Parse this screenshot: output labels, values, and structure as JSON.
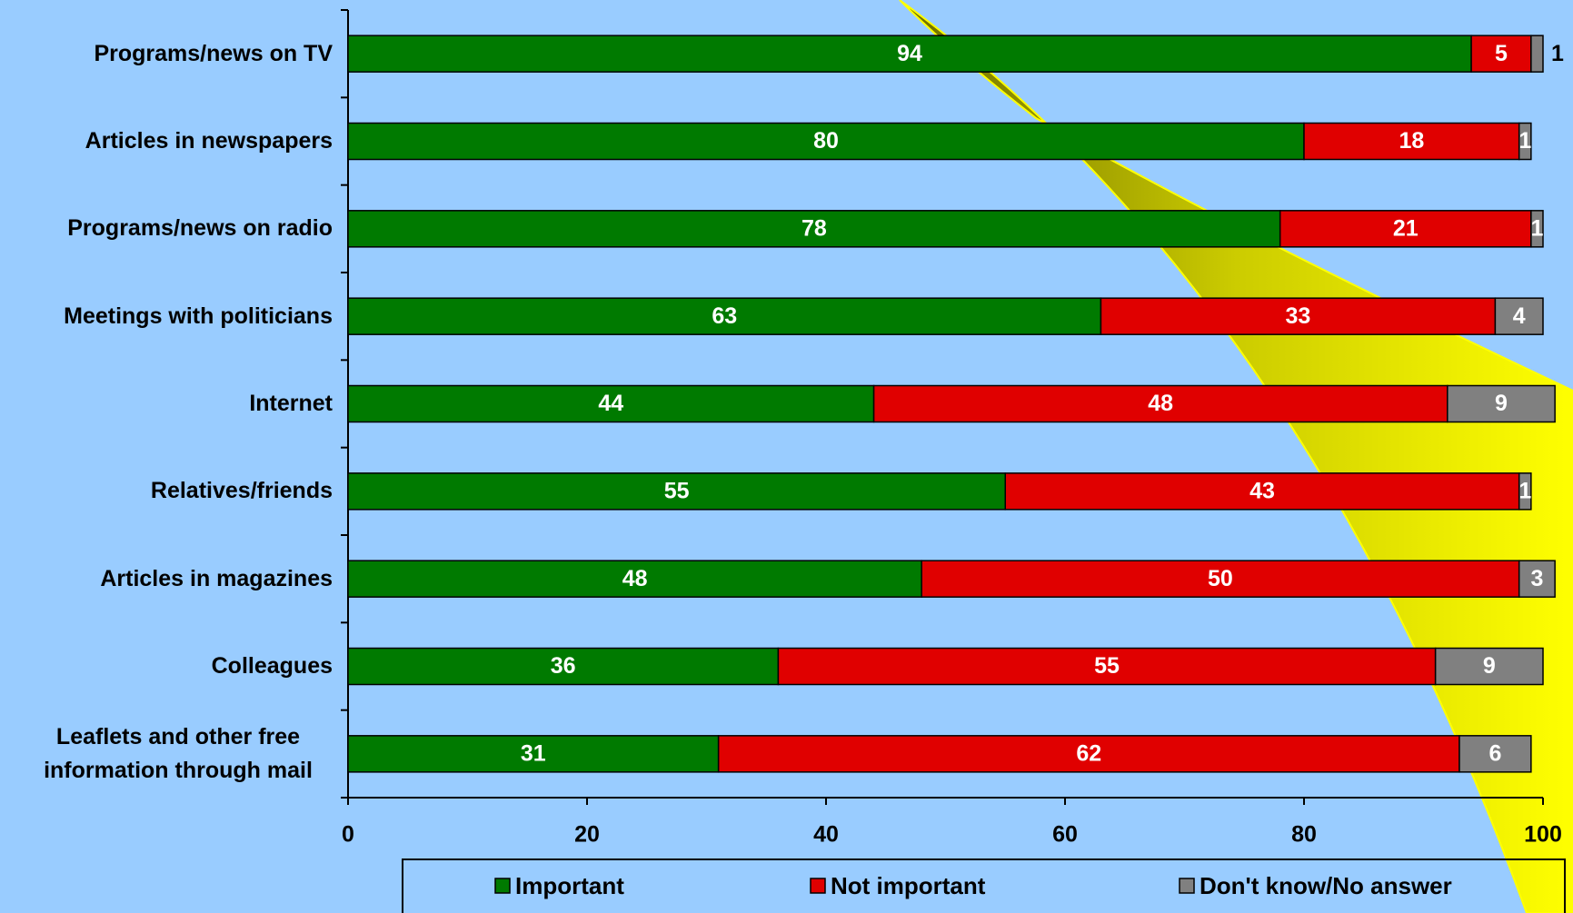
{
  "chart_data": {
    "type": "stacked-bar-horizontal",
    "categories": [
      "Programs/news on TV",
      "Articles in newspapers",
      "Programs/news on radio",
      "Meetings with politicians",
      "Internet",
      "Relatives/friends",
      "Articles in magazines",
      "Colleagues",
      "Leaflets and other free information through mail"
    ],
    "series": [
      {
        "name": "Important",
        "color": "#007a00",
        "values": [
          94,
          80,
          78,
          63,
          44,
          55,
          48,
          36,
          31
        ]
      },
      {
        "name": "Not important",
        "color": "#e00000",
        "values": [
          5,
          18,
          21,
          33,
          48,
          43,
          50,
          55,
          62
        ]
      },
      {
        "name": "Don't know/No answer",
        "color": "#808080",
        "values": [
          1,
          1,
          1,
          4,
          9,
          1,
          3,
          9,
          6
        ]
      }
    ],
    "xlim": [
      0,
      100
    ],
    "xticks": [
      0,
      20,
      40,
      60,
      80,
      100
    ]
  }
}
